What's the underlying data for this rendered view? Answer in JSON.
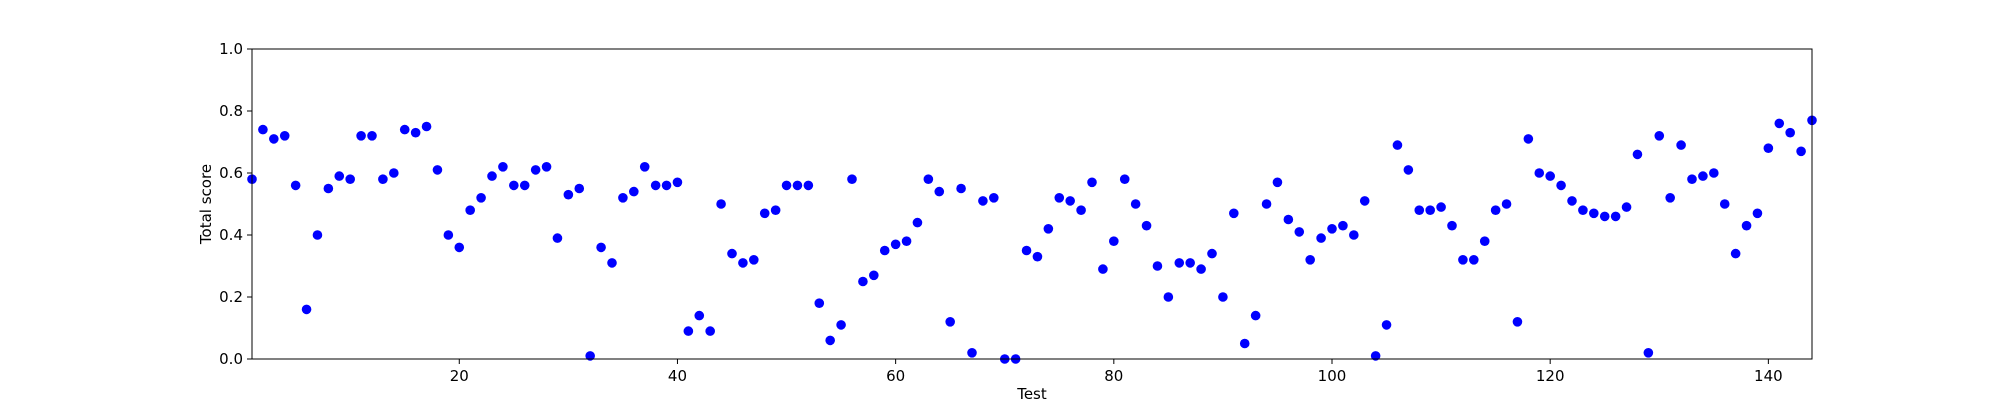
{
  "chart_data": {
    "type": "scatter",
    "xlabel": "Test",
    "ylabel": "Total score",
    "xlim": [
      1,
      144
    ],
    "ylim": [
      0.0,
      1.0
    ],
    "xticks": [
      20,
      40,
      60,
      80,
      100,
      120,
      140
    ],
    "yticks": [
      0.0,
      0.2,
      0.4,
      0.6,
      0.8,
      1.0
    ],
    "ytick_labels": [
      "0.0",
      "0.2",
      "0.4",
      "0.6",
      "0.8",
      "1.0"
    ],
    "grid": false,
    "legend": "none",
    "marker_color": "#0000ff",
    "x": [
      1,
      2,
      3,
      4,
      5,
      6,
      7,
      8,
      9,
      10,
      11,
      12,
      13,
      14,
      15,
      16,
      17,
      18,
      19,
      20,
      21,
      22,
      23,
      24,
      25,
      26,
      27,
      28,
      29,
      30,
      31,
      32,
      33,
      34,
      35,
      36,
      37,
      38,
      39,
      40,
      41,
      42,
      43,
      44,
      45,
      46,
      47,
      48,
      49,
      50,
      51,
      52,
      53,
      54,
      55,
      56,
      57,
      58,
      59,
      60,
      61,
      62,
      63,
      64,
      65,
      66,
      67,
      68,
      69,
      70,
      71,
      72,
      73,
      74,
      75,
      76,
      77,
      78,
      79,
      80,
      81,
      82,
      83,
      84,
      85,
      86,
      87,
      88,
      89,
      90,
      91,
      92,
      93,
      94,
      95,
      96,
      97,
      98,
      99,
      100,
      101,
      102,
      103,
      104,
      105,
      106,
      107,
      108,
      109,
      110,
      111,
      112,
      113,
      114,
      115,
      116,
      117,
      118,
      119,
      120,
      121,
      122,
      123,
      124,
      125,
      126,
      127,
      128,
      129,
      130,
      131,
      132,
      133,
      134,
      135,
      136,
      137,
      138,
      139,
      140,
      141,
      142,
      143,
      144
    ],
    "y": [
      0.58,
      0.74,
      0.71,
      0.72,
      0.56,
      0.16,
      0.4,
      0.55,
      0.59,
      0.58,
      0.72,
      0.72,
      0.58,
      0.6,
      0.74,
      0.73,
      0.75,
      0.61,
      0.4,
      0.36,
      0.48,
      0.52,
      0.59,
      0.62,
      0.56,
      0.56,
      0.61,
      0.62,
      0.39,
      0.53,
      0.55,
      0.01,
      0.36,
      0.31,
      0.52,
      0.54,
      0.62,
      0.56,
      0.56,
      0.57,
      0.09,
      0.14,
      0.09,
      0.5,
      0.34,
      0.31,
      0.32,
      0.47,
      0.48,
      0.56,
      0.56,
      0.56,
      0.18,
      0.06,
      0.11,
      0.58,
      0.25,
      0.27,
      0.35,
      0.37,
      0.38,
      0.44,
      0.58,
      0.54,
      0.12,
      0.55,
      0.02,
      0.51,
      0.52,
      0.0,
      0.0,
      0.35,
      0.33,
      0.42,
      0.52,
      0.51,
      0.48,
      0.57,
      0.29,
      0.38,
      0.58,
      0.5,
      0.43,
      0.3,
      0.2,
      0.31,
      0.31,
      0.29,
      0.34,
      0.2,
      0.47,
      0.05,
      0.14,
      0.5,
      0.57,
      0.45,
      0.41,
      0.32,
      0.39,
      0.42,
      0.43,
      0.4,
      0.51,
      0.01,
      0.11,
      0.69,
      0.61,
      0.48,
      0.48,
      0.49,
      0.43,
      0.32,
      0.32,
      0.38,
      0.48,
      0.5,
      0.12,
      0.71,
      0.6,
      0.59,
      0.56,
      0.51,
      0.48,
      0.47,
      0.46,
      0.46,
      0.49,
      0.66,
      0.02,
      0.72,
      0.52,
      0.69,
      0.58,
      0.59,
      0.6,
      0.5,
      0.34,
      0.43,
      0.47,
      0.68,
      0.76,
      0.73,
      0.67,
      0.77
    ]
  }
}
